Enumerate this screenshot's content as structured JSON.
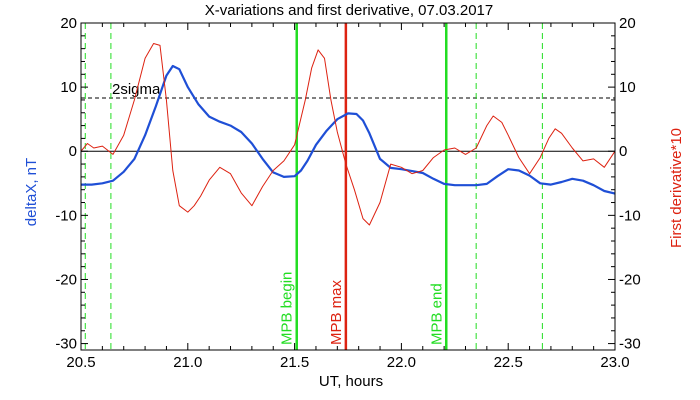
{
  "chart_data": {
    "type": "line",
    "title": "X-variations and first derivative, 07.03.2017",
    "xlabel": "UT, hours",
    "ylabel_left": "deltaX, nT",
    "ylabel_right": "First derivative*10",
    "xlim": [
      20.5,
      23.0
    ],
    "ylim": [
      -31,
      20
    ],
    "x_ticks": [
      "20.5",
      "21.0",
      "21.5",
      "22.0",
      "22.5",
      "23.0"
    ],
    "y_ticks": [
      "20",
      "10",
      "0",
      "-10",
      "-20",
      "-30"
    ],
    "grid": false,
    "colors": {
      "deltaX": "#1f4fd6",
      "derivative": "#dd2211",
      "mpb_lines": "#22dd22",
      "mpb_max": "#dd2211",
      "sigma": "#000000",
      "axes": "#000000"
    },
    "sigma_level": {
      "label": "2sigma",
      "value": 8.3
    },
    "zero_line": 0,
    "vertical_lines": [
      {
        "x": 20.52,
        "style": "dashed",
        "color_key": "mpb_lines",
        "label": ""
      },
      {
        "x": 20.64,
        "style": "dashed",
        "color_key": "mpb_lines",
        "label": ""
      },
      {
        "x": 21.51,
        "style": "solid",
        "color_key": "mpb_lines",
        "label": "MPB begin"
      },
      {
        "x": 21.74,
        "style": "solid",
        "color_key": "mpb_max",
        "label": "MPB max"
      },
      {
        "x": 22.21,
        "style": "solid",
        "color_key": "mpb_lines",
        "label": "MPB end"
      },
      {
        "x": 22.35,
        "style": "dashed",
        "color_key": "mpb_lines",
        "label": ""
      },
      {
        "x": 22.66,
        "style": "dashed",
        "color_key": "mpb_lines",
        "label": ""
      }
    ],
    "series": [
      {
        "key": "deltaX",
        "x": [
          20.5,
          20.55,
          20.6,
          20.65,
          20.7,
          20.75,
          20.8,
          20.85,
          20.9,
          20.93,
          20.96,
          21.0,
          21.05,
          21.1,
          21.15,
          21.2,
          21.25,
          21.3,
          21.35,
          21.4,
          21.45,
          21.5,
          21.53,
          21.56,
          21.6,
          21.65,
          21.7,
          21.75,
          21.79,
          21.82,
          21.85,
          21.9,
          21.95,
          22.0,
          22.05,
          22.1,
          22.15,
          22.2,
          22.25,
          22.3,
          22.35,
          22.4,
          22.45,
          22.5,
          22.55,
          22.6,
          22.65,
          22.7,
          22.75,
          22.8,
          22.85,
          22.9,
          22.95,
          23.0
        ],
        "values": [
          -5.2,
          -5.2,
          -5.0,
          -4.6,
          -3.2,
          -1.2,
          2.5,
          7.0,
          11.8,
          13.3,
          12.8,
          10.0,
          7.3,
          5.4,
          4.6,
          4.0,
          3.0,
          1.2,
          -1.2,
          -3.3,
          -4.0,
          -3.9,
          -3.0,
          -1.5,
          1.0,
          3.2,
          5.0,
          5.9,
          5.8,
          4.8,
          2.8,
          -1.2,
          -2.6,
          -2.8,
          -3.1,
          -3.4,
          -4.3,
          -5.1,
          -5.3,
          -5.3,
          -5.3,
          -5.1,
          -3.9,
          -2.8,
          -3.0,
          -3.8,
          -5.0,
          -5.2,
          -4.8,
          -4.3,
          -4.6,
          -5.3,
          -6.2,
          -6.6
        ]
      },
      {
        "key": "derivative",
        "x": [
          20.5,
          20.53,
          20.56,
          20.6,
          20.65,
          20.7,
          20.75,
          20.8,
          20.84,
          20.87,
          20.9,
          20.93,
          20.96,
          21.0,
          21.03,
          21.06,
          21.1,
          21.15,
          21.2,
          21.25,
          21.3,
          21.35,
          21.4,
          21.45,
          21.5,
          21.55,
          21.58,
          21.61,
          21.64,
          21.67,
          21.7,
          21.74,
          21.78,
          21.82,
          21.85,
          21.9,
          21.95,
          22.0,
          22.05,
          22.1,
          22.15,
          22.2,
          22.25,
          22.3,
          22.35,
          22.4,
          22.43,
          22.47,
          22.5,
          22.55,
          22.6,
          22.65,
          22.69,
          22.72,
          22.75,
          22.8,
          22.85,
          22.9,
          22.95,
          23.0
        ],
        "values": [
          0.0,
          1.2,
          0.5,
          0.8,
          -0.5,
          2.5,
          8.0,
          14.5,
          16.8,
          16.5,
          8.0,
          -3.0,
          -8.5,
          -9.5,
          -8.5,
          -7.0,
          -4.5,
          -2.5,
          -3.5,
          -6.5,
          -8.5,
          -5.5,
          -3.0,
          -1.5,
          1.0,
          8.0,
          13.0,
          15.8,
          14.5,
          8.0,
          3.0,
          -2.0,
          -6.0,
          -10.5,
          -11.5,
          -8.0,
          -2.0,
          -2.5,
          -3.5,
          -3.0,
          -1.0,
          0.2,
          0.5,
          -0.5,
          0.5,
          4.0,
          5.5,
          4.5,
          2.5,
          -1.0,
          -3.5,
          -1.0,
          2.0,
          3.5,
          2.8,
          0.5,
          -1.5,
          -1.2,
          -2.5,
          0.0
        ]
      }
    ]
  }
}
